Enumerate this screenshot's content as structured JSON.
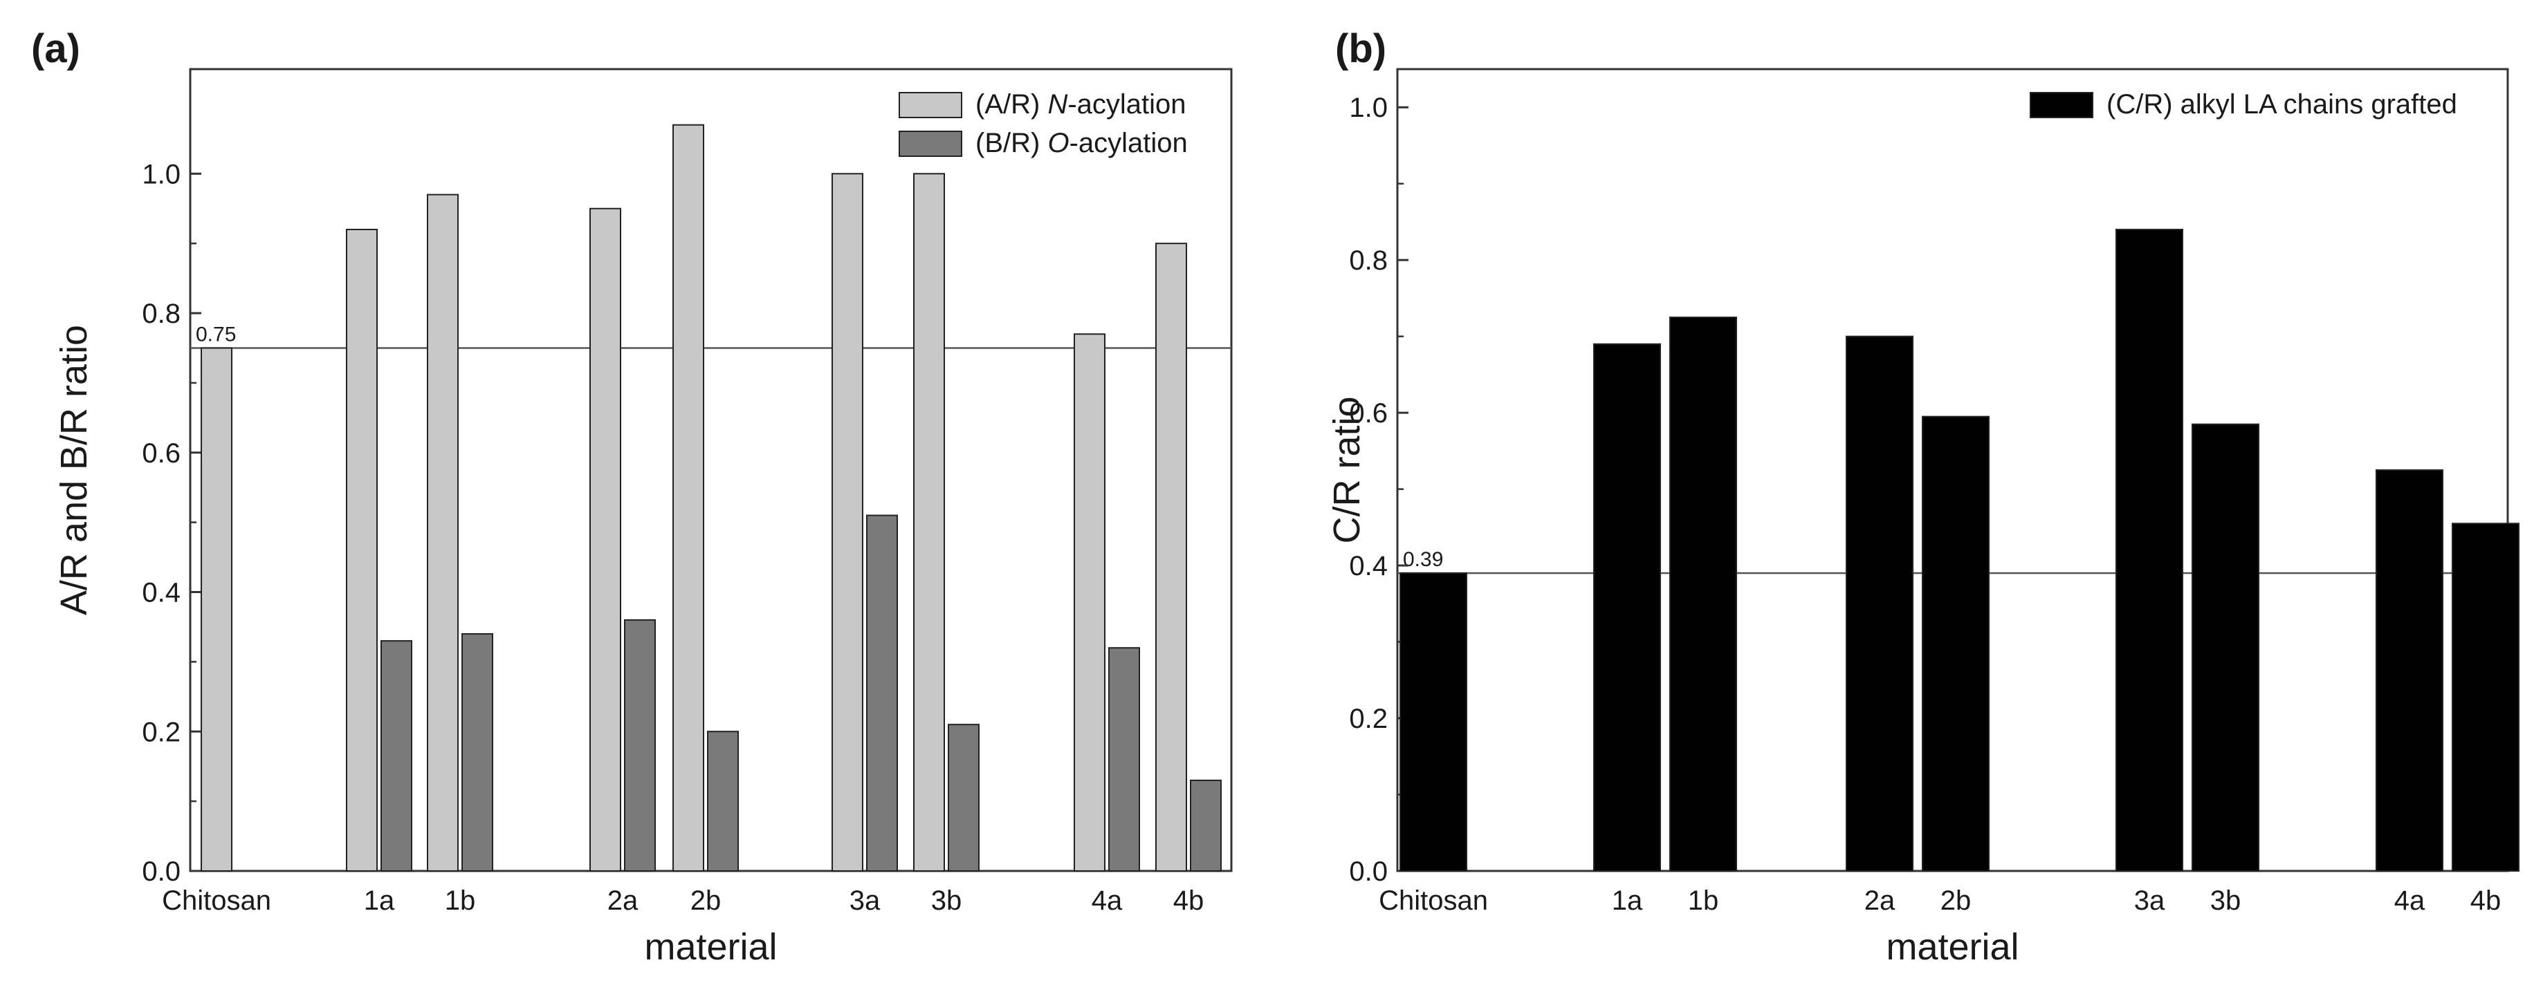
{
  "chart_data": [
    {
      "panel_label": "(a)",
      "type": "bar",
      "categories": [
        "Chitosan",
        "1a",
        "1b",
        "2a",
        "2b",
        "3a",
        "3b",
        "4a",
        "4b"
      ],
      "series": [
        {
          "name": "(A/R) N-acylation",
          "legend_prefix": "(A/R) ",
          "legend_italic": "N",
          "legend_suffix": "-acylation",
          "color": "#c8c8c8",
          "values": [
            0.75,
            0.92,
            0.97,
            0.95,
            1.07,
            1.0,
            1.0,
            0.77,
            0.9
          ]
        },
        {
          "name": "(B/R) O-acylation",
          "legend_prefix": "(B/R) ",
          "legend_italic": "O",
          "legend_suffix": "-acylation",
          "color": "#7a7a7a",
          "values": [
            null,
            0.33,
            0.34,
            0.36,
            0.2,
            0.51,
            0.21,
            0.32,
            0.13
          ]
        }
      ],
      "xlabel": "material",
      "ylabel": "A/R and B/R ratio",
      "ylim": [
        0,
        1.15
      ],
      "yticks": [
        0.0,
        0.2,
        0.4,
        0.6,
        0.8,
        1.0
      ],
      "yticks_labels": [
        "0.0",
        "0.2",
        "0.4",
        "0.6",
        "0.8",
        "1.0"
      ],
      "reference_line": {
        "value": 0.75,
        "label": "0.75"
      },
      "legend_position": "top-right"
    },
    {
      "panel_label": "(b)",
      "type": "bar",
      "categories": [
        "Chitosan",
        "1a",
        "1b",
        "2a",
        "2b",
        "3a",
        "3b",
        "4a",
        "4b"
      ],
      "series": [
        {
          "name": "(C/R) alkyl LA chains grafted",
          "legend_prefix": "(C/R) alkyl LA chains grafted",
          "legend_italic": "",
          "legend_suffix": "",
          "color": "#000000",
          "values": [
            0.39,
            0.69,
            0.725,
            0.7,
            0.595,
            0.84,
            0.585,
            0.525,
            0.455
          ]
        }
      ],
      "xlabel": "material",
      "ylabel": "C/R ratio",
      "ylim": [
        0,
        1.05
      ],
      "yticks": [
        0.0,
        0.2,
        0.4,
        0.6,
        0.8,
        1.0
      ],
      "yticks_labels": [
        "0.0",
        "0.2",
        "0.4",
        "0.6",
        "0.8",
        "1.0"
      ],
      "reference_line": {
        "value": 0.39,
        "label": "0.39"
      },
      "legend_position": "top-right"
    }
  ]
}
